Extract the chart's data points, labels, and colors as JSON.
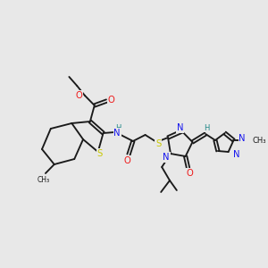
{
  "bg_color": "#e8e8e8",
  "colors": {
    "bond": "#1a1a1a",
    "N": "#1515ee",
    "O": "#ee1515",
    "S": "#c8c800",
    "H": "#208888",
    "C": "#1a1a1a"
  },
  "lw": 1.35,
  "fs": 7.2,
  "fs_sm": 6.0
}
